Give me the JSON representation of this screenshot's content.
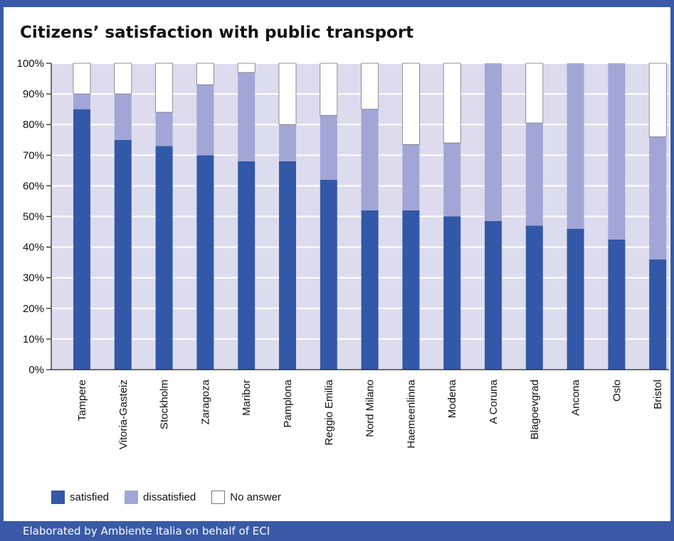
{
  "title": "Citizens’ satisfaction with public transport",
  "footer": "Elaborated by Ambiente Italia on behalf of ECI",
  "colors": {
    "satisfied": "#3358a8",
    "dissatisfied": "#a2a6d6",
    "no_answer": "#ffffff",
    "plot_background": "#dcdcee",
    "frame": "#3a5aa8"
  },
  "chart_data": {
    "type": "bar",
    "stacked": true,
    "title": "Citizens’ satisfaction with public transport",
    "xlabel": "",
    "ylabel": "",
    "ylim": [
      0,
      100
    ],
    "yticks": [
      "0%",
      "10%",
      "20%",
      "30%",
      "40%",
      "50%",
      "60%",
      "70%",
      "80%",
      "90%",
      "100%"
    ],
    "grid": true,
    "legend_position": "bottom-left",
    "categories": [
      "Tampere",
      "Vitoria-Gasteiz",
      "Stockholm",
      "Zaragoza",
      "Maribor",
      "Pamplona",
      "Reggio Emilia",
      "Nord Milano",
      "Haemeenlinna",
      "Modena",
      "A Coruna",
      "Blagoevgrad",
      "Ancona",
      "Oslo",
      "Bristol"
    ],
    "series": [
      {
        "name": "satisfied",
        "values": [
          85,
          75,
          73,
          70,
          68,
          68,
          62,
          52,
          52,
          50,
          48.5,
          47,
          46,
          42.5,
          36
        ]
      },
      {
        "name": "dissatisfied",
        "values": [
          5,
          15,
          11,
          23,
          29,
          12,
          21,
          33,
          21.5,
          24,
          51.5,
          33.5,
          54,
          57.5,
          40
        ]
      },
      {
        "name": "No answer",
        "values": [
          10,
          10,
          16,
          7,
          3,
          20,
          17,
          15,
          26.5,
          26,
          0,
          19.5,
          0,
          0,
          24
        ]
      }
    ]
  }
}
